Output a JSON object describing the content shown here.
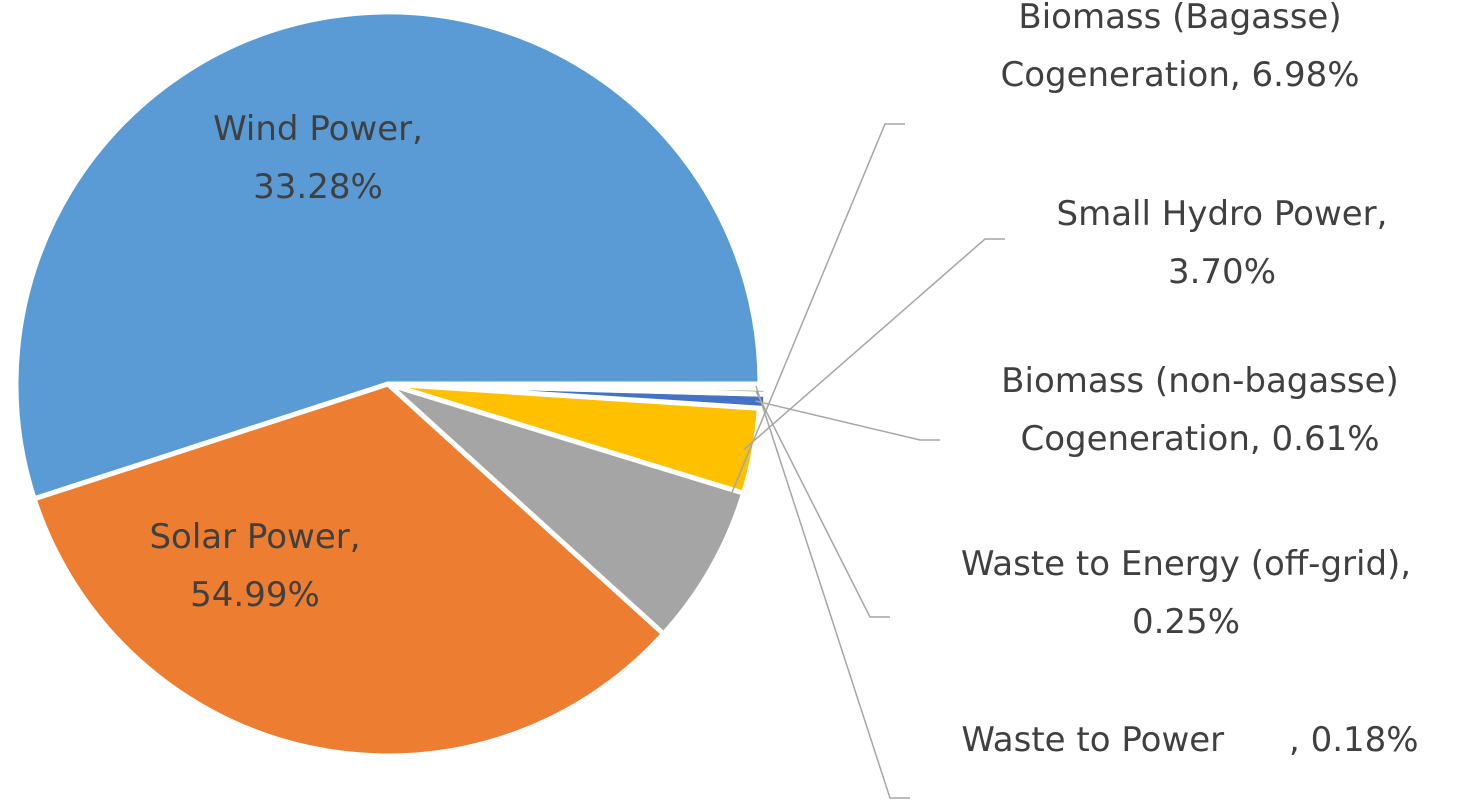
{
  "chart_data": {
    "type": "pie",
    "start_angle_deg": 0,
    "direction": "counterclockwise",
    "show_legend": false,
    "slices": [
      {
        "name": "Solar Power",
        "value": 54.99,
        "pct_label": "54.99%",
        "color": "#5b9bd5",
        "label_position": "inside",
        "label_lines": [
          "Solar Power,",
          "54.99%"
        ]
      },
      {
        "name": "Wind Power",
        "value": 33.28,
        "pct_label": "33.28%",
        "color": "#ed7d31",
        "label_position": "inside",
        "label_lines": [
          "Wind Power,",
          "33.28%"
        ]
      },
      {
        "name": "Biomass (Bagasse) Cogeneration",
        "value": 6.98,
        "pct_label": "6.98%",
        "color": "#a5a5a5",
        "label_position": "outside",
        "label_lines": [
          "Biomass (Bagasse)",
          "Cogeneration, 6.98%"
        ]
      },
      {
        "name": "Small Hydro Power",
        "value": 3.7,
        "pct_label": "3.70%",
        "color": "#ffc000",
        "label_position": "outside",
        "label_lines": [
          "Small Hydro Power,",
          "3.70%"
        ]
      },
      {
        "name": "Biomass (non-bagasse) Cogeneration",
        "value": 0.61,
        "pct_label": "0.61%",
        "color": "#4472c4",
        "label_position": "outside",
        "label_lines": [
          "Biomass (non-bagasse)",
          "Cogeneration, 0.61%"
        ]
      },
      {
        "name": "Waste to Energy (off-grid)",
        "value": 0.25,
        "pct_label": "0.25%",
        "color": "#70ad47",
        "label_position": "outside",
        "label_lines": [
          "Waste to Energy (off-grid),",
          "0.25%"
        ]
      },
      {
        "name": "Waste to Power",
        "value": 0.18,
        "pct_label": "0.18%",
        "color": "#264478",
        "label_position": "outside",
        "label_lines": [
          "Waste to Power      , 0.18%"
        ]
      }
    ]
  }
}
